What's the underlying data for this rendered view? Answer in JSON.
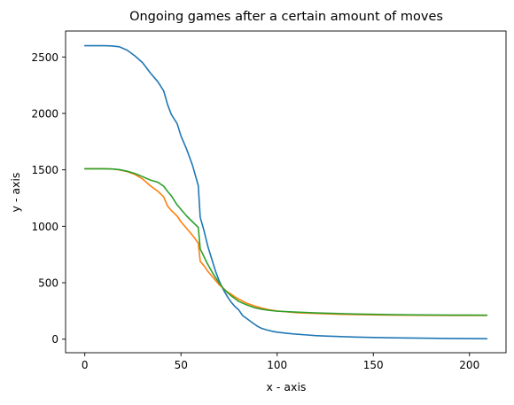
{
  "chart_data": {
    "type": "line",
    "title": "Ongoing games after a certain amount of moves",
    "xlabel": "x - axis",
    "ylabel": "y - axis",
    "xlim": [
      -10,
      219
    ],
    "ylim": [
      -120,
      2730
    ],
    "xticks": [
      0,
      50,
      100,
      150,
      200
    ],
    "yticks": [
      0,
      500,
      1000,
      1500,
      2000,
      2500
    ],
    "xtick_labels": [
      "0",
      "50",
      "100",
      "150",
      "200"
    ],
    "ytick_labels": [
      "0",
      "500",
      "1000",
      "1500",
      "2000",
      "2500"
    ],
    "grid": false,
    "legend": "none",
    "series": [
      {
        "color": "#1f77b4",
        "x": [
          0,
          5,
          10,
          14,
          18,
          22,
          26,
          30,
          34,
          38,
          41,
          43,
          45,
          48,
          50,
          53,
          56,
          59,
          60,
          62,
          64,
          66,
          68,
          70,
          72,
          74,
          76,
          78,
          80,
          82,
          84,
          86,
          88,
          90,
          92,
          95,
          98,
          100,
          105,
          110,
          115,
          120,
          125,
          130,
          140,
          150,
          160,
          170,
          180,
          190,
          200,
          209
        ],
        "y": [
          2600,
          2600,
          2600,
          2598,
          2590,
          2560,
          2510,
          2450,
          2360,
          2280,
          2200,
          2080,
          1990,
          1910,
          1800,
          1680,
          1540,
          1360,
          1080,
          960,
          820,
          710,
          600,
          510,
          440,
          380,
          330,
          290,
          260,
          210,
          185,
          160,
          135,
          112,
          95,
          80,
          68,
          62,
          52,
          44,
          38,
          32,
          28,
          25,
          19,
          15,
          12,
          10,
          8,
          6,
          5,
          4
        ]
      },
      {
        "color": "#ff7f0e",
        "x": [
          0,
          5,
          10,
          14,
          18,
          22,
          26,
          30,
          34,
          38,
          41,
          43,
          45,
          48,
          50,
          53,
          56,
          59,
          60,
          62,
          64,
          66,
          68,
          70,
          72,
          74,
          76,
          78,
          80,
          84,
          88,
          92,
          96,
          100,
          110,
          120,
          130,
          140,
          150,
          160,
          170,
          180,
          190,
          200,
          209
        ],
        "y": [
          1510,
          1510,
          1510,
          1508,
          1500,
          1485,
          1460,
          1420,
          1360,
          1310,
          1260,
          1180,
          1140,
          1090,
          1040,
          980,
          920,
          850,
          690,
          650,
          600,
          560,
          520,
          480,
          450,
          420,
          400,
          375,
          355,
          320,
          295,
          275,
          260,
          250,
          235,
          228,
          222,
          218,
          215,
          213,
          212,
          211,
          210,
          210,
          210
        ]
      },
      {
        "color": "#2ca02c",
        "x": [
          0,
          5,
          10,
          14,
          18,
          22,
          26,
          30,
          34,
          38,
          41,
          43,
          45,
          48,
          50,
          53,
          56,
          59,
          60,
          62,
          64,
          66,
          68,
          70,
          72,
          74,
          76,
          78,
          80,
          84,
          88,
          92,
          96,
          100,
          110,
          120,
          130,
          140,
          150,
          160,
          170,
          180,
          190,
          200,
          209
        ],
        "y": [
          1510,
          1510,
          1510,
          1508,
          1502,
          1488,
          1468,
          1440,
          1410,
          1390,
          1355,
          1310,
          1270,
          1190,
          1150,
          1090,
          1040,
          990,
          800,
          730,
          660,
          600,
          545,
          495,
          450,
          415,
          385,
          360,
          335,
          305,
          280,
          265,
          255,
          248,
          240,
          233,
          228,
          223,
          220,
          217,
          215,
          214,
          213,
          213,
          212
        ]
      }
    ]
  }
}
